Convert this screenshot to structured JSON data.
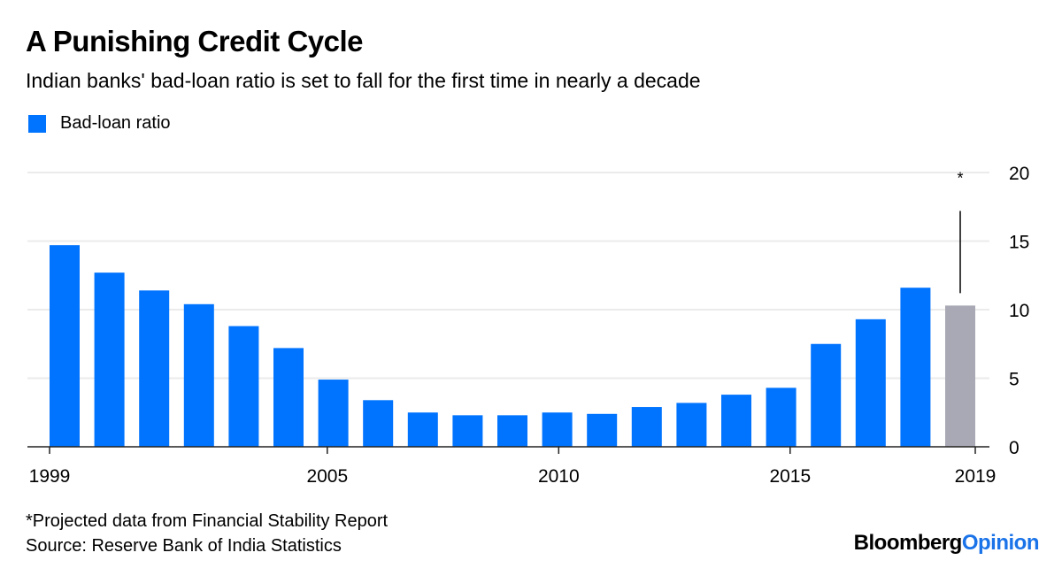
{
  "header": {
    "title": "A Punishing Credit Cycle",
    "subtitle": "Indian banks' bad-loan ratio is set to fall for the first time in nearly a decade"
  },
  "legend": {
    "label": "Bad-loan ratio",
    "color": "#0073ff"
  },
  "footnote": {
    "note": "*Projected data from Financial Stability Report",
    "source": "Source: Reserve Bank of India Statistics"
  },
  "brand": {
    "part1": "Bloomberg",
    "part2": "Opinion"
  },
  "colors": {
    "actual": "#0073ff",
    "projected": "#a9a9b5",
    "grid": "#ebebeb",
    "axis": "#222222"
  },
  "chart_data": {
    "type": "bar",
    "title": "A Punishing Credit Cycle",
    "subtitle": "Indian banks' bad-loan ratio is set to fall for the first time in nearly a decade",
    "xlabel": "",
    "ylabel": "",
    "categories": [
      "1999",
      "2000",
      "2001",
      "2002",
      "2003",
      "2004",
      "2005",
      "2006",
      "2007",
      "2008",
      "2009",
      "2010",
      "2011",
      "2012",
      "2013",
      "2014",
      "2015",
      "2016",
      "2017",
      "2018",
      "2019"
    ],
    "series": [
      {
        "name": "Bad-loan ratio",
        "values": [
          14.7,
          12.7,
          11.4,
          10.4,
          8.8,
          7.2,
          4.9,
          3.4,
          2.5,
          2.3,
          2.3,
          2.5,
          2.4,
          2.9,
          3.2,
          3.8,
          4.3,
          7.5,
          9.3,
          11.6,
          10.3
        ],
        "projected": [
          false,
          false,
          false,
          false,
          false,
          false,
          false,
          false,
          false,
          false,
          false,
          false,
          false,
          false,
          false,
          false,
          false,
          false,
          false,
          false,
          true
        ]
      }
    ],
    "x_tick_labels": [
      "1999",
      "2005",
      "2010",
      "2015",
      "2019"
    ],
    "y_ticks": [
      0,
      5,
      10,
      15,
      20
    ],
    "ylim": [
      0,
      20
    ],
    "y_axis_side": "right",
    "grid": true,
    "legend_position": "top-left",
    "annotations": [
      {
        "category": "2019",
        "text": "*",
        "type": "leader-line"
      }
    ]
  }
}
